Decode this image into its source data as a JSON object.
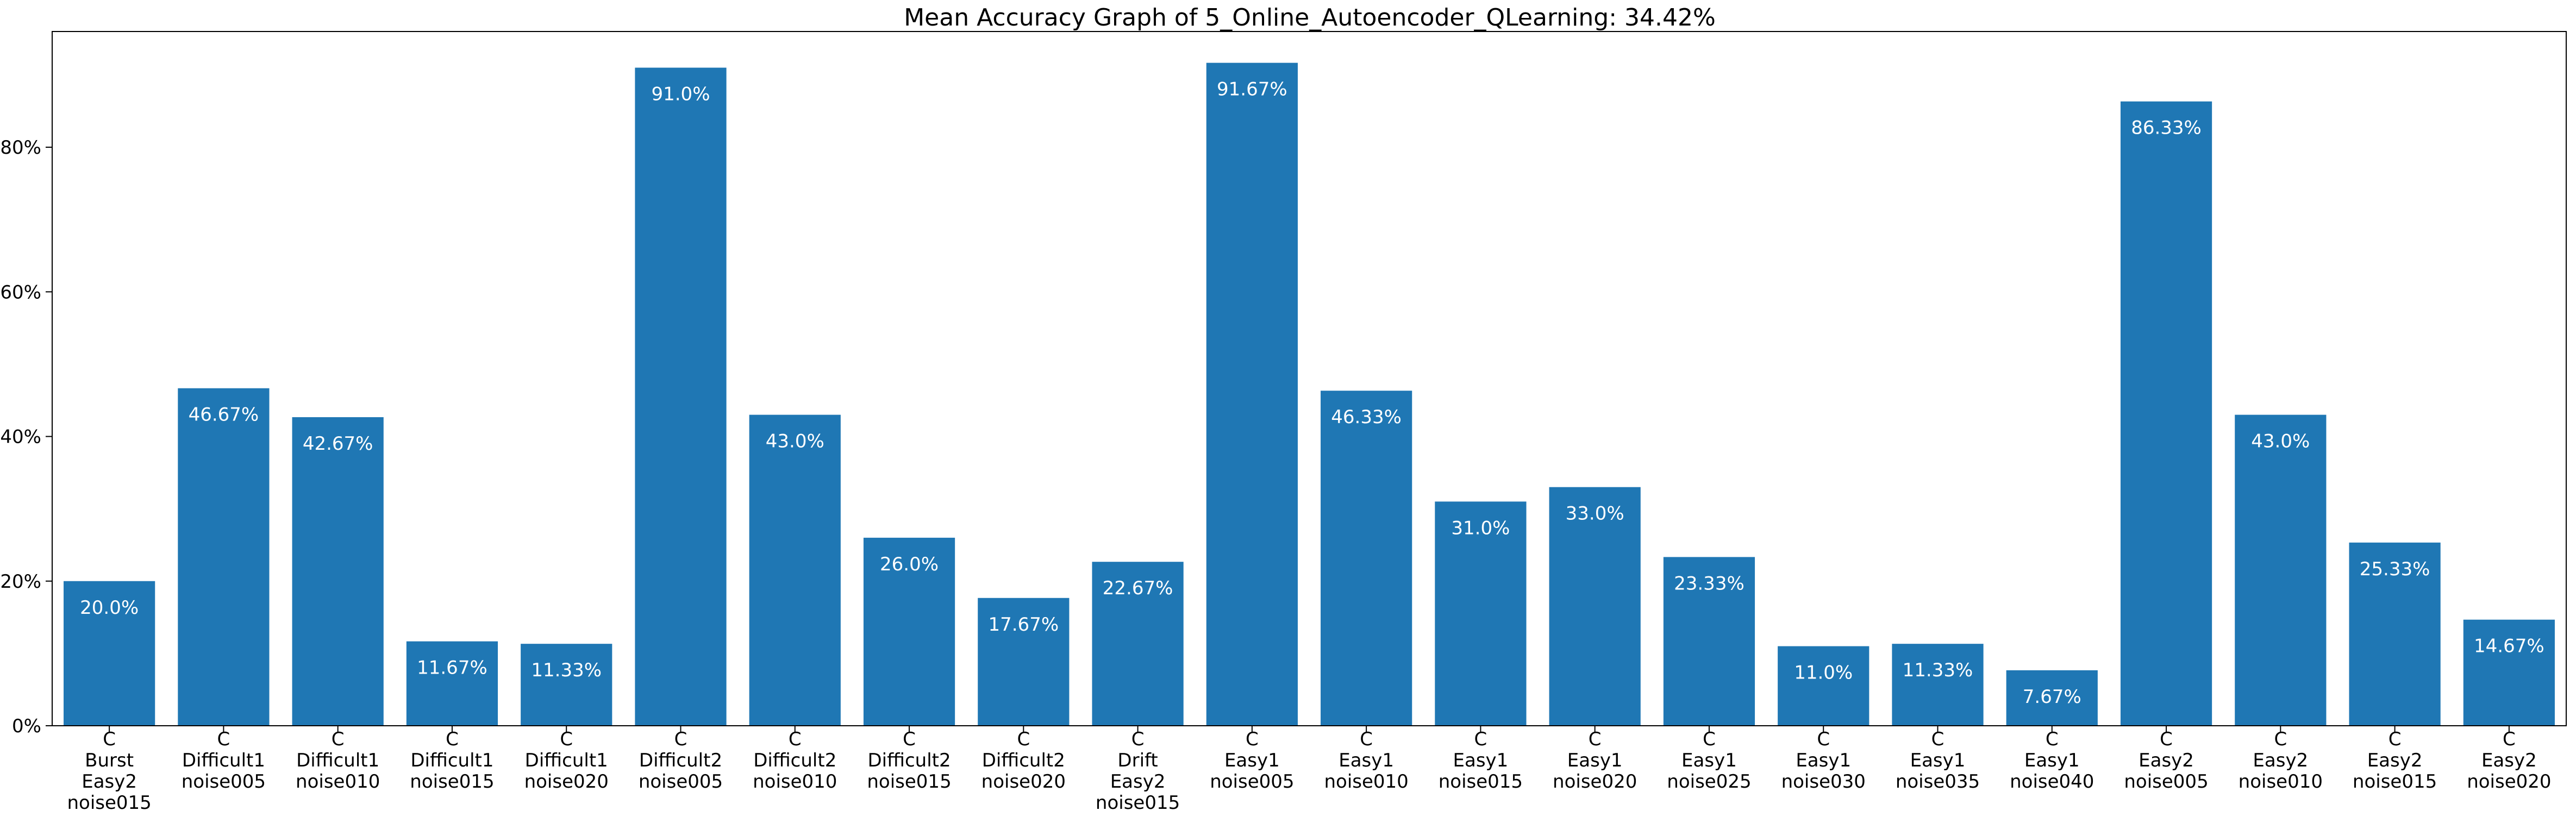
{
  "chart_data": {
    "type": "bar",
    "title": "Mean Accuracy Graph of 5_Online_Autoencoder_QLearning: 34.42%",
    "xlabel": "",
    "ylabel": "",
    "ylim": [
      0,
      96
    ],
    "yticks": [
      0,
      20,
      40,
      60,
      80
    ],
    "ytick_labels": [
      "0%",
      "20%",
      "40%",
      "60%",
      "80%"
    ],
    "grid": false,
    "bar_color": "#1f77b4",
    "value_label_color": "#ffffff",
    "categories": [
      [
        "C",
        "Burst",
        "Easy2",
        "noise015"
      ],
      [
        "C",
        "Difficult1",
        "noise005"
      ],
      [
        "C",
        "Difficult1",
        "noise010"
      ],
      [
        "C",
        "Difficult1",
        "noise015"
      ],
      [
        "C",
        "Difficult1",
        "noise020"
      ],
      [
        "C",
        "Difficult2",
        "noise005"
      ],
      [
        "C",
        "Difficult2",
        "noise010"
      ],
      [
        "C",
        "Difficult2",
        "noise015"
      ],
      [
        "C",
        "Difficult2",
        "noise020"
      ],
      [
        "C",
        "Drift",
        "Easy2",
        "noise015"
      ],
      [
        "C",
        "Easy1",
        "noise005"
      ],
      [
        "C",
        "Easy1",
        "noise010"
      ],
      [
        "C",
        "Easy1",
        "noise015"
      ],
      [
        "C",
        "Easy1",
        "noise020"
      ],
      [
        "C",
        "Easy1",
        "noise025"
      ],
      [
        "C",
        "Easy1",
        "noise030"
      ],
      [
        "C",
        "Easy1",
        "noise035"
      ],
      [
        "C",
        "Easy1",
        "noise040"
      ],
      [
        "C",
        "Easy2",
        "noise005"
      ],
      [
        "C",
        "Easy2",
        "noise010"
      ],
      [
        "C",
        "Easy2",
        "noise015"
      ],
      [
        "C",
        "Easy2",
        "noise020"
      ]
    ],
    "values": [
      20.0,
      46.67,
      42.67,
      11.67,
      11.33,
      91.0,
      43.0,
      26.0,
      17.67,
      22.67,
      91.67,
      46.33,
      31.0,
      33.0,
      23.33,
      11.0,
      11.33,
      7.67,
      86.33,
      43.0,
      25.33,
      14.67
    ],
    "value_labels": [
      "20.0%",
      "46.67%",
      "42.67%",
      "11.67%",
      "11.33%",
      "91.0%",
      "43.0%",
      "26.0%",
      "17.67%",
      "22.67%",
      "91.67%",
      "46.33%",
      "31.0%",
      "33.0%",
      "23.33%",
      "11.0%",
      "11.33%",
      "7.67%",
      "86.33%",
      "43.0%",
      "25.33%",
      "14.67%"
    ]
  }
}
